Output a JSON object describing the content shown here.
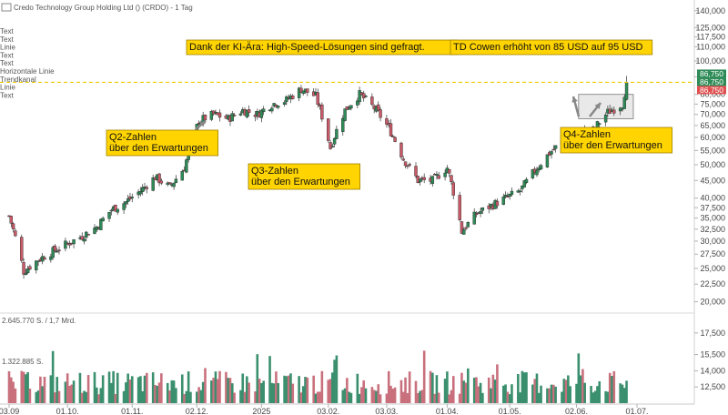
{
  "header": {
    "title": "Credo Technology Group Holding Ltd () (CRDO) - 1 Tag",
    "drawing_tools": [
      "Text",
      "Text",
      "Linie",
      "Text",
      "Text",
      "Horizontale Linie",
      "Trendkanal",
      "Linie",
      "Text"
    ]
  },
  "volume_info": {
    "line1": "2.645.770 S. / 1,7 Mrd.",
    "line2": "1.322.885 S."
  },
  "colors": {
    "up": "#2e8b57",
    "down": "#c95a68",
    "vol_up": "#3a8f6e",
    "vol_down": "#c9707d",
    "annotation_bg": "#ffd400",
    "hline": "#f0c800",
    "price_badge": "#2e8b57",
    "red_badge": "#e05050",
    "grid": "#e6e6e6"
  },
  "chart_data": {
    "type": "candlestick",
    "title": "Credo Technology Group Holding Ltd () (CRDO) - 1 Tag",
    "scale": "log",
    "ylim": [
      19000,
      145000
    ],
    "y_ticks": [
      20000,
      22500,
      25000,
      27500,
      30000,
      32500,
      35000,
      37500,
      40000,
      45000,
      50000,
      55000,
      60000,
      65000,
      70000,
      75000,
      80000,
      90000,
      100000,
      110000,
      117500,
      125000,
      140000
    ],
    "y_tick_labels": [
      "20,000",
      "22,500",
      "25,000",
      "27,500",
      "30,000",
      "32,500",
      "35,000",
      "37,500",
      "40,000",
      "45,000",
      "50,000",
      "55,000",
      "60,000",
      "65,000",
      "70,000",
      "75,000",
      "80,000",
      "90,000",
      "100,000",
      "110,000",
      "117,500",
      "125,000",
      "140,000"
    ],
    "x_labels": [
      "03.09",
      "01.10.",
      "01.11.",
      "02.12.",
      "2025",
      "03.02.",
      "03.03.",
      "01.04.",
      "01.05.",
      "02.06.",
      "01.07."
    ],
    "x_label_dates": [
      "2024-09-03",
      "2024-10-01",
      "2024-11-01",
      "2024-12-02",
      "2025-01-02",
      "2025-02-03",
      "2025-03-03",
      "2025-04-01",
      "2025-05-01",
      "2025-06-02",
      "2025-07-01"
    ],
    "closes": [
      [
        "2024-09-03",
        35.5
      ],
      [
        "2024-09-10",
        24.5
      ],
      [
        "2024-09-17",
        26.5
      ],
      [
        "2024-09-24",
        28.0
      ],
      [
        "2024-10-01",
        29.5
      ],
      [
        "2024-10-08",
        31.0
      ],
      [
        "2024-10-15",
        33.0
      ],
      [
        "2024-10-22",
        37.0
      ],
      [
        "2024-10-29",
        39.0
      ],
      [
        "2024-11-05",
        42.0
      ],
      [
        "2024-11-12",
        46.0
      ],
      [
        "2024-11-19",
        43.0
      ],
      [
        "2024-11-26",
        49.0
      ],
      [
        "2024-12-03",
        67.0
      ],
      [
        "2024-12-10",
        70.0
      ],
      [
        "2024-12-17",
        68.0
      ],
      [
        "2024-12-24",
        72.0
      ],
      [
        "2024-12-31",
        70.0
      ],
      [
        "2025-01-07",
        75.0
      ],
      [
        "2025-01-14",
        77.0
      ],
      [
        "2025-01-21",
        83.0
      ],
      [
        "2025-01-28",
        79.0
      ],
      [
        "2025-02-04",
        56.0
      ],
      [
        "2025-02-11",
        72.0
      ],
      [
        "2025-02-18",
        80.0
      ],
      [
        "2025-02-25",
        73.0
      ],
      [
        "2025-03-04",
        64.0
      ],
      [
        "2025-03-11",
        52.0
      ],
      [
        "2025-03-18",
        45.0
      ],
      [
        "2025-03-25",
        45.0
      ],
      [
        "2025-04-01",
        49.0
      ],
      [
        "2025-04-08",
        32.0
      ],
      [
        "2025-04-15",
        36.0
      ],
      [
        "2025-04-22",
        38.0
      ],
      [
        "2025-04-29",
        40.0
      ],
      [
        "2025-05-06",
        42.0
      ],
      [
        "2025-05-13",
        48.0
      ],
      [
        "2025-05-20",
        54.0
      ],
      [
        "2025-05-27",
        59.0
      ],
      [
        "2025-06-03",
        62.0
      ],
      [
        "2025-06-10",
        63.0
      ],
      [
        "2025-06-17",
        71.0
      ],
      [
        "2025-06-24",
        75.0
      ],
      [
        "2025-06-26",
        86.75
      ]
    ],
    "last_price_label": "86,750",
    "price_badges": [
      "86,750",
      "86,750",
      "86,750"
    ],
    "horizontal_line": 86.75,
    "annotations": [
      {
        "text": "Dank der KI-Ära: High-Speed-Lösungen sind gefragt."
      },
      {
        "text": "TD Cowen erhöht von 85 USD auf 95 USD"
      },
      {
        "text": "Q2-Zahlen\nüber den Erwartungen"
      },
      {
        "text": "Q3-Zahlen\nüber den Erwartungen"
      },
      {
        "text": "Q4-Zahlen\nüber den Erwartungen"
      }
    ],
    "volume_ticks": [
      12500,
      14000,
      15500,
      17500
    ],
    "volume_tick_labels": [
      "12,500",
      "14,000",
      "15,500",
      "17,500"
    ],
    "grid": false
  }
}
